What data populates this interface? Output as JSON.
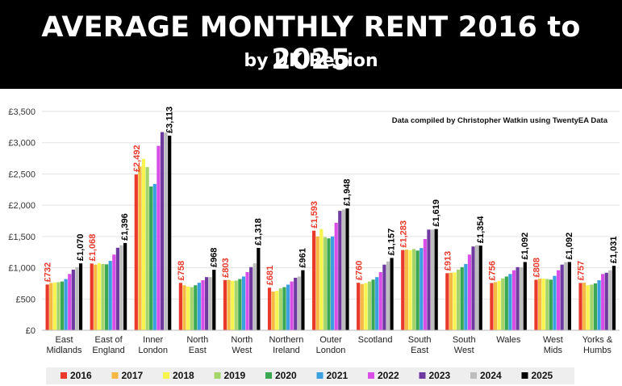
{
  "header": {
    "title": "AVERAGE MONTHLY RENT 2016 to 2025",
    "subtitle": "by UK Region"
  },
  "chart_data": {
    "type": "bar",
    "title": "AVERAGE MONTHLY RENT 2016 to 2025",
    "subtitle": "by UK Region",
    "annotation": "Data compiled by Christopher Watkin using TwentyEA Data",
    "xlabel": "",
    "ylabel": "",
    "ylim": [
      0,
      3500
    ],
    "yticks": [
      0,
      500,
      1000,
      1500,
      2000,
      2500,
      3000,
      3500
    ],
    "ytick_labels": [
      "£0",
      "£500",
      "£1,000",
      "£1,500",
      "£2,000",
      "£2,500",
      "£3,000",
      "£3,500"
    ],
    "grid": true,
    "legend_position": "bottom",
    "categories": [
      [
        "East",
        "Midlands"
      ],
      [
        "East of",
        "England"
      ],
      [
        "Inner",
        "London"
      ],
      [
        "North",
        "East"
      ],
      [
        "North",
        "West"
      ],
      [
        "Northern",
        "Ireland"
      ],
      [
        "Outer",
        "London"
      ],
      [
        "Scotland"
      ],
      [
        "South",
        "East"
      ],
      [
        "South",
        "West"
      ],
      [
        "Wales"
      ],
      [
        "West",
        "Mids"
      ],
      [
        "Yorks &",
        "Humbs"
      ]
    ],
    "series": [
      {
        "name": "2016",
        "color": "#e8392b",
        "values": [
          732,
          1068,
          2492,
          758,
          803,
          681,
          1593,
          760,
          1283,
          913,
          756,
          808,
          757
        ]
      },
      {
        "name": "2017",
        "color": "#f5b843",
        "values": [
          755,
          1050,
          2620,
          720,
          805,
          620,
          1500,
          740,
          1290,
          920,
          770,
          825,
          760
        ]
      },
      {
        "name": "2018",
        "color": "#f7f54d",
        "values": [
          765,
          1075,
          2740,
          700,
          790,
          630,
          1620,
          755,
          1280,
          925,
          790,
          825,
          720
        ]
      },
      {
        "name": "2019",
        "color": "#a5d46a",
        "values": [
          770,
          1060,
          2610,
          690,
          795,
          670,
          1490,
          780,
          1300,
          970,
          830,
          820,
          730
        ]
      },
      {
        "name": "2020",
        "color": "#3aa752",
        "values": [
          780,
          1055,
          2300,
          720,
          820,
          690,
          1470,
          810,
          1275,
          1010,
          860,
          810,
          750
        ]
      },
      {
        "name": "2021",
        "color": "#3aa0e0",
        "values": [
          820,
          1110,
          2340,
          760,
          860,
          730,
          1500,
          850,
          1315,
          1060,
          900,
          870,
          800
        ]
      },
      {
        "name": "2022",
        "color": "#d94ee6",
        "values": [
          900,
          1210,
          2950,
          800,
          930,
          780,
          1720,
          930,
          1460,
          1210,
          960,
          960,
          900
        ]
      },
      {
        "name": "2023",
        "color": "#6e3aa0",
        "values": [
          970,
          1320,
          3170,
          850,
          1010,
          840,
          1910,
          1050,
          1610,
          1340,
          1010,
          1050,
          920
        ]
      },
      {
        "name": "2024",
        "color": "#bdbdbd",
        "values": [
          1010,
          1360,
          3160,
          850,
          1070,
          860,
          1930,
          1100,
          1610,
          1360,
          1010,
          1090,
          960
        ]
      },
      {
        "name": "2025",
        "color": "#000000",
        "values": [
          1070,
          1396,
          3113,
          968,
          1318,
          961,
          1948,
          1157,
          1619,
          1354,
          1092,
          1092,
          1031
        ]
      }
    ],
    "data_labels": {
      "2016": [
        "£732",
        "£1,068",
        "£2,492",
        "£758",
        "£803",
        "£681",
        "£1,593",
        "£760",
        "£1,283",
        "£913",
        "£756",
        "£808",
        "£757"
      ],
      "2025": [
        "£1,070",
        "£1,396",
        "£3,113",
        "£968",
        "£1,318",
        "£961",
        "£1,948",
        "£1,157",
        "£1,619",
        "£1,354",
        "£1,092",
        "£1,092",
        "£1,031"
      ]
    }
  }
}
